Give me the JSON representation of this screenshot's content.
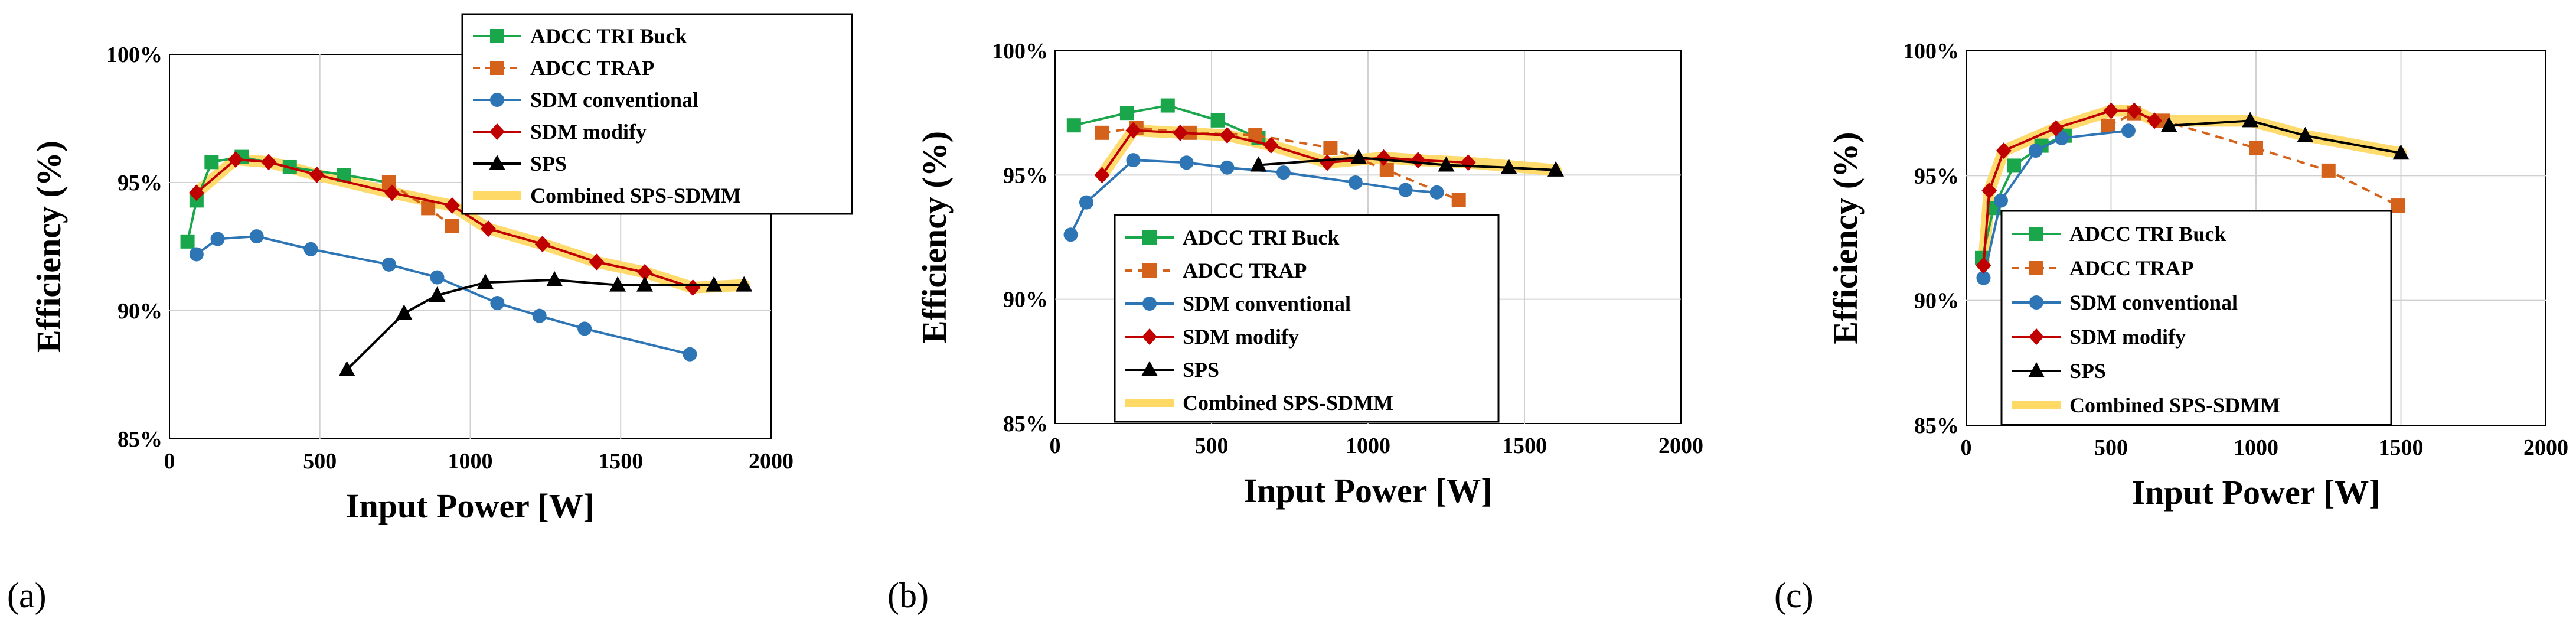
{
  "figure": {
    "panel_labels": [
      "(a)",
      "(b)",
      "(c)"
    ]
  },
  "chart_data": [
    {
      "type": "line",
      "panel": "(a)",
      "title": "",
      "xlabel": "Input Power [W]",
      "ylabel": "Efficiency (%)",
      "xlim": [
        0,
        2000
      ],
      "ylim": [
        85,
        100
      ],
      "xticks": [
        0,
        500,
        1000,
        1500,
        2000
      ],
      "xtick_labels": [
        "0",
        "500",
        "1000",
        "1500",
        "2000"
      ],
      "yticks": [
        85,
        90,
        95,
        100
      ],
      "ytick_labels": [
        "85%",
        "90%",
        "95%",
        "100%"
      ],
      "grid": true,
      "legend_position": "top-right",
      "series": [
        {
          "name": "ADCC TRI Buck",
          "color": "#1aa64a",
          "marker": "square",
          "dash": "solid",
          "x": [
            60,
            90,
            140,
            240,
            400,
            580,
            730
          ],
          "y": [
            92.7,
            94.3,
            95.8,
            96.0,
            95.6,
            95.3,
            95.0
          ]
        },
        {
          "name": "ADCC TRAP",
          "color": "#d4621b",
          "marker": "square",
          "dash": "dashed",
          "x": [
            730,
            860,
            940
          ],
          "y": [
            95.0,
            94.0,
            93.3
          ]
        },
        {
          "name": "SDM conventional",
          "color": "#2e75b6",
          "marker": "circle",
          "dash": "solid",
          "x": [
            90,
            160,
            290,
            470,
            730,
            890,
            1090,
            1230,
            1380,
            1730
          ],
          "y": [
            92.2,
            92.8,
            92.9,
            92.4,
            91.8,
            91.3,
            90.3,
            89.8,
            89.3,
            88.3
          ]
        },
        {
          "name": "SDM modify",
          "color": "#c00000",
          "marker": "diamond",
          "dash": "solid",
          "x": [
            90,
            220,
            330,
            490,
            740,
            940,
            1060,
            1240,
            1420,
            1580,
            1740
          ],
          "y": [
            94.6,
            95.9,
            95.8,
            95.3,
            94.6,
            94.1,
            93.2,
            92.6,
            91.9,
            91.5,
            90.9
          ]
        },
        {
          "name": "SPS",
          "color": "#000000",
          "marker": "triangle",
          "dash": "solid",
          "x": [
            590,
            780,
            890,
            1050,
            1280,
            1490,
            1580,
            1810,
            1910
          ],
          "y": [
            87.7,
            89.9,
            90.6,
            91.1,
            91.2,
            91.0,
            91.0,
            91.0,
            91.0
          ]
        },
        {
          "name": "Combined SPS-SDMM",
          "color": "#ffd966",
          "marker": "none",
          "dash": "band",
          "x": [
            90,
            220,
            330,
            490,
            740,
            940,
            1060,
            1240,
            1420,
            1580,
            1740,
            1910
          ],
          "y": [
            94.6,
            95.9,
            95.8,
            95.3,
            94.6,
            94.1,
            93.2,
            92.6,
            91.9,
            91.5,
            90.9,
            91.0
          ]
        }
      ]
    },
    {
      "type": "line",
      "panel": "(b)",
      "title": "",
      "xlabel": "Input Power [W]",
      "ylabel": "Efficiency (%)",
      "xlim": [
        0,
        2000
      ],
      "ylim": [
        85,
        100
      ],
      "xticks": [
        0,
        500,
        1000,
        1500,
        2000
      ],
      "xtick_labels": [
        "0",
        "500",
        "1000",
        "1500",
        "2000"
      ],
      "yticks": [
        85,
        90,
        95,
        100
      ],
      "ytick_labels": [
        "85%",
        "90%",
        "95%",
        "100%"
      ],
      "grid": true,
      "legend_position": "bottom-left",
      "series": [
        {
          "name": "ADCC TRI Buck",
          "color": "#1aa64a",
          "marker": "square",
          "dash": "solid",
          "x": [
            60,
            230,
            360,
            520,
            650
          ],
          "y": [
            97.0,
            97.5,
            97.8,
            97.2,
            96.5
          ]
        },
        {
          "name": "ADCC TRAP",
          "color": "#d4621b",
          "marker": "square",
          "dash": "dashed",
          "x": [
            150,
            260,
            430,
            640,
            880,
            1060,
            1290
          ],
          "y": [
            96.7,
            96.9,
            96.7,
            96.6,
            96.1,
            95.2,
            94.0
          ]
        },
        {
          "name": "SDM conventional",
          "color": "#2e75b6",
          "marker": "circle",
          "dash": "solid",
          "x": [
            50,
            100,
            250,
            420,
            550,
            730,
            960,
            1120,
            1220
          ],
          "y": [
            92.6,
            93.9,
            95.6,
            95.5,
            95.3,
            95.1,
            94.7,
            94.4,
            94.3
          ]
        },
        {
          "name": "SDM modify",
          "color": "#c00000",
          "marker": "diamond",
          "dash": "solid",
          "x": [
            150,
            250,
            400,
            550,
            690,
            870,
            1050,
            1160,
            1320
          ],
          "y": [
            95.0,
            96.8,
            96.7,
            96.6,
            96.2,
            95.5,
            95.7,
            95.6,
            95.5
          ]
        },
        {
          "name": "SPS",
          "color": "#000000",
          "marker": "triangle",
          "dash": "solid",
          "x": [
            650,
            970,
            1250,
            1450,
            1600
          ],
          "y": [
            95.4,
            95.7,
            95.4,
            95.3,
            95.2
          ]
        },
        {
          "name": "Combined SPS-SDMM",
          "color": "#ffd966",
          "marker": "none",
          "dash": "band",
          "x": [
            150,
            250,
            400,
            550,
            690,
            870,
            1050,
            1160,
            1320,
            1600
          ],
          "y": [
            95.0,
            96.8,
            96.7,
            96.6,
            96.2,
            95.5,
            95.7,
            95.6,
            95.5,
            95.2
          ]
        }
      ]
    },
    {
      "type": "line",
      "panel": "(c)",
      "title": "",
      "xlabel": "Input Power [W]",
      "ylabel": "Efficiency (%)",
      "xlim": [
        0,
        2000
      ],
      "ylim": [
        85,
        100
      ],
      "xticks": [
        0,
        500,
        1000,
        1500,
        2000
      ],
      "xtick_labels": [
        "0",
        "500",
        "1000",
        "1500",
        "2000"
      ],
      "yticks": [
        85,
        90,
        95,
        100
      ],
      "ytick_labels": [
        "85%",
        "90%",
        "95%",
        "100%"
      ],
      "grid": true,
      "legend_position": "bottom-left",
      "series": [
        {
          "name": "ADCC TRI Buck",
          "color": "#1aa64a",
          "marker": "square",
          "dash": "solid",
          "x": [
            55,
            95,
            165,
            260,
            340
          ],
          "y": [
            91.7,
            93.7,
            95.4,
            96.2,
            96.6
          ]
        },
        {
          "name": "ADCC TRAP",
          "color": "#d4621b",
          "marker": "square",
          "dash": "dashed",
          "x": [
            490,
            580,
            680,
            1000,
            1250,
            1490
          ],
          "y": [
            97.0,
            97.5,
            97.2,
            96.1,
            95.2,
            93.8
          ]
        },
        {
          "name": "SDM conventional",
          "color": "#2e75b6",
          "marker": "circle",
          "dash": "solid",
          "x": [
            60,
            120,
            240,
            330,
            560
          ],
          "y": [
            90.9,
            94.0,
            96.0,
            96.5,
            96.8
          ]
        },
        {
          "name": "SDM modify",
          "color": "#c00000",
          "marker": "diamond",
          "dash": "solid",
          "x": [
            60,
            80,
            130,
            310,
            500,
            580,
            650
          ],
          "y": [
            91.4,
            94.4,
            96.0,
            96.9,
            97.6,
            97.6,
            97.2
          ]
        },
        {
          "name": "SPS",
          "color": "#000000",
          "marker": "triangle",
          "dash": "solid",
          "x": [
            700,
            980,
            1170,
            1500
          ],
          "y": [
            97.0,
            97.2,
            96.6,
            95.9
          ]
        },
        {
          "name": "Combined SPS-SDMM",
          "color": "#ffd966",
          "marker": "none",
          "dash": "band",
          "x": [
            60,
            80,
            130,
            310,
            500,
            580,
            650,
            980,
            1170,
            1500
          ],
          "y": [
            91.4,
            94.4,
            96.0,
            96.9,
            97.6,
            97.6,
            97.2,
            97.2,
            96.6,
            95.9
          ]
        }
      ]
    }
  ]
}
